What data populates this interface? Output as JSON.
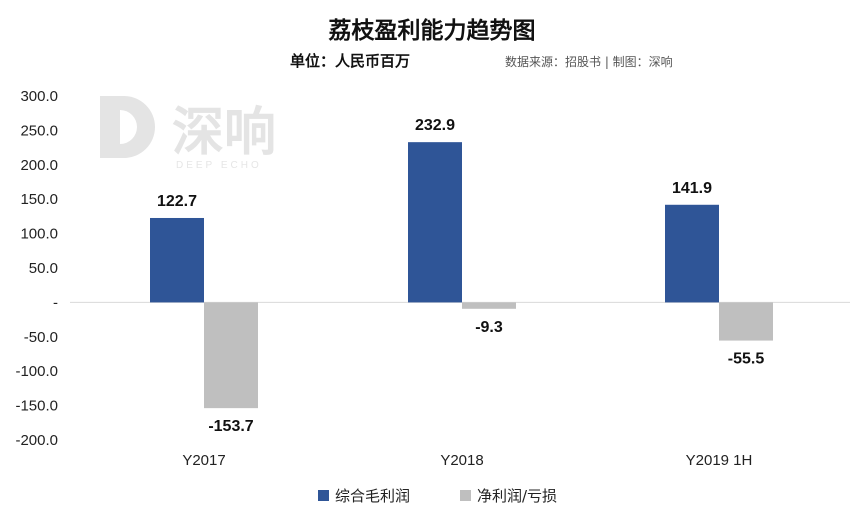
{
  "chart_data": {
    "type": "bar",
    "title": "荔枝盈利能力趋势图",
    "subtitle": "单位：人民币百万",
    "source": "数据来源：招股书 | 制图：深响",
    "categories": [
      "Y2017",
      "Y2018",
      "Y2019 1H"
    ],
    "series": [
      {
        "name": "综合毛利润",
        "color": "#2f5597",
        "values": [
          122.7,
          232.9,
          141.9
        ],
        "labels": [
          "122.7",
          "232.9",
          "141.9"
        ]
      },
      {
        "name": "净利润/亏损",
        "color": "#bfbfbf",
        "values": [
          -153.7,
          -9.3,
          -55.5
        ],
        "labels": [
          "-153.7",
          "-9.3",
          "-55.5"
        ]
      }
    ],
    "ylim": [
      -200,
      300
    ],
    "yticks": [
      300,
      250,
      200,
      150,
      100,
      50,
      0,
      -50,
      -100,
      -150,
      -200
    ],
    "ytick_labels": [
      "300.0",
      "250.0",
      "200.0",
      "150.0",
      "100.0",
      "50.0",
      "-",
      "-50.0",
      "-100.0",
      "-150.0",
      "-200.0"
    ],
    "xlabel": "",
    "ylabel": "",
    "legend": "bottom",
    "grid": false
  },
  "watermark": {
    "name": "深响",
    "sub": "DEEP ECHO"
  }
}
